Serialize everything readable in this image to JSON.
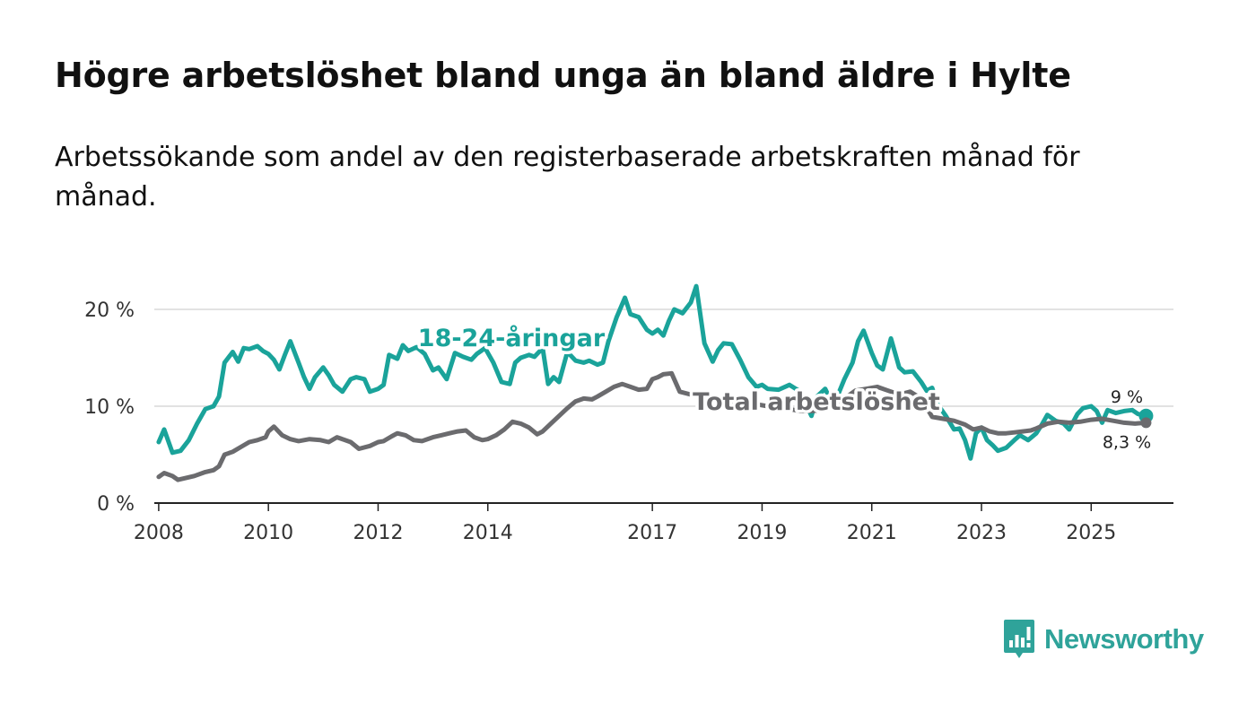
{
  "title": "Högre arbetslöshet bland unga än bland äldre i Hylte",
  "subtitle": "Arbetssökande som andel av den registerbaserade arbetskraften månad för månad.",
  "brand": {
    "name": "Newsworthy"
  },
  "chart_data": {
    "type": "line",
    "title": "Högre arbetslöshet bland unga än bland äldre i Hylte",
    "subtitle": "Arbetssökande som andel av den registerbaserade arbetskraften månad för månad.",
    "xlabel": "",
    "ylabel": "",
    "ylim": [
      0,
      22.5
    ],
    "xlim": [
      2007.92,
      2026.5
    ],
    "y_ticks": [
      {
        "value": 0,
        "label": "0 %"
      },
      {
        "value": 10,
        "label": "10 %"
      },
      {
        "value": 20,
        "label": "20 %"
      }
    ],
    "x_ticks": [
      {
        "value": 2008,
        "label": "2008"
      },
      {
        "value": 2010,
        "label": "2010"
      },
      {
        "value": 2012,
        "label": "2012"
      },
      {
        "value": 2014,
        "label": "2014"
      },
      {
        "value": 2017,
        "label": "2017"
      },
      {
        "value": 2019,
        "label": "2019"
      },
      {
        "value": 2021,
        "label": "2021"
      },
      {
        "value": 2023,
        "label": "2023"
      },
      {
        "value": 2025,
        "label": "2025"
      }
    ],
    "grid": true,
    "series": [
      {
        "name": "18-24-åringar",
        "color": "#1aa39a",
        "end_label": "9 %",
        "x": [
          2008.0,
          2008.1,
          2008.25,
          2008.4,
          2008.55,
          2008.7,
          2008.85,
          2009.0,
          2009.1,
          2009.2,
          2009.35,
          2009.45,
          2009.55,
          2009.65,
          2009.8,
          2009.9,
          2010.0,
          2010.1,
          2010.2,
          2010.3,
          2010.4,
          2010.55,
          2010.65,
          2010.75,
          2010.85,
          2011.0,
          2011.1,
          2011.2,
          2011.35,
          2011.5,
          2011.6,
          2011.75,
          2011.85,
          2012.0,
          2012.1,
          2012.2,
          2012.35,
          2012.45,
          2012.55,
          2012.7,
          2012.85,
          2013.0,
          2013.1,
          2013.25,
          2013.4,
          2013.55,
          2013.7,
          2013.8,
          2013.95,
          2014.1,
          2014.25,
          2014.4,
          2014.5,
          2014.6,
          2014.75,
          2014.85,
          2015.0,
          2015.1,
          2015.2,
          2015.3,
          2015.45,
          2015.6,
          2015.75,
          2015.85,
          2016.0,
          2016.1,
          2016.2,
          2016.35,
          2016.5,
          2016.6,
          2016.75,
          2016.9,
          2017.0,
          2017.1,
          2017.2,
          2017.3,
          2017.4,
          2017.55,
          2017.7,
          2017.8,
          2017.95,
          2018.1,
          2018.2,
          2018.3,
          2018.45,
          2018.6,
          2018.75,
          2018.9,
          2019.0,
          2019.1,
          2019.3,
          2019.5,
          2019.7,
          2019.9,
          2020.0,
          2020.15,
          2020.3,
          2020.5,
          2020.65,
          2020.75,
          2020.85,
          2021.0,
          2021.1,
          2021.2,
          2021.35,
          2021.5,
          2021.6,
          2021.75,
          2021.9,
          2022.0,
          2022.1,
          2022.2,
          2022.35,
          2022.5,
          2022.6,
          2022.7,
          2022.8,
          2022.9,
          2023.0,
          2023.1,
          2023.2,
          2023.3,
          2023.45,
          2023.6,
          2023.7,
          2023.85,
          2024.0,
          2024.1,
          2024.2,
          2024.35,
          2024.5,
          2024.6,
          2024.75,
          2024.85,
          2025.0,
          2025.1,
          2025.2,
          2025.3,
          2025.45,
          2025.6,
          2025.75,
          2025.85,
          2026.0
        ],
        "y": [
          6.3,
          7.6,
          5.2,
          5.4,
          6.5,
          8.2,
          9.7,
          10.0,
          11.0,
          14.5,
          15.6,
          14.6,
          16.0,
          15.9,
          16.2,
          15.7,
          15.4,
          14.8,
          13.8,
          15.3,
          16.7,
          14.5,
          13.0,
          11.8,
          13.0,
          14.0,
          13.2,
          12.2,
          11.5,
          12.8,
          13.0,
          12.8,
          11.5,
          11.8,
          12.2,
          15.3,
          14.9,
          16.3,
          15.7,
          16.1,
          15.4,
          13.7,
          14.0,
          12.8,
          15.5,
          15.1,
          14.8,
          15.4,
          16.0,
          14.5,
          12.5,
          12.3,
          14.5,
          15.0,
          15.3,
          15.1,
          16.0,
          12.3,
          13.0,
          12.5,
          15.6,
          14.7,
          14.5,
          14.7,
          14.3,
          14.5,
          16.7,
          19.2,
          21.2,
          19.5,
          19.2,
          17.9,
          17.5,
          17.9,
          17.3,
          18.8,
          20.0,
          19.6,
          20.7,
          22.4,
          16.5,
          14.6,
          15.8,
          16.5,
          16.4,
          14.8,
          13.0,
          12.0,
          12.2,
          11.8,
          11.7,
          12.2,
          11.5,
          9.0,
          11.0,
          11.8,
          10.0,
          12.8,
          14.5,
          16.7,
          17.8,
          15.5,
          14.2,
          13.8,
          17.0,
          14.0,
          13.5,
          13.6,
          12.5,
          11.6,
          11.9,
          10.2,
          9.0,
          7.6,
          7.7,
          6.5,
          4.6,
          7.2,
          7.8,
          6.5,
          6.0,
          5.4,
          5.7,
          6.5,
          7.0,
          6.5,
          7.2,
          8.1,
          9.1,
          8.5,
          8.2,
          7.6,
          9.2,
          9.8,
          10.0,
          9.5,
          8.3,
          9.6,
          9.3,
          9.5,
          9.6,
          9.2,
          9.0
        ]
      },
      {
        "name": "Total arbetslöshet",
        "color": "#6b6b6e",
        "end_label": "8,3 %",
        "x": [
          2008.0,
          2008.1,
          2008.25,
          2008.35,
          2008.5,
          2008.65,
          2008.85,
          2009.0,
          2009.1,
          2009.2,
          2009.35,
          2009.5,
          2009.65,
          2009.8,
          2009.95,
          2010.0,
          2010.1,
          2010.25,
          2010.4,
          2010.55,
          2010.75,
          2010.95,
          2011.1,
          2011.25,
          2011.35,
          2011.5,
          2011.65,
          2011.85,
          2012.0,
          2012.1,
          2012.25,
          2012.35,
          2012.5,
          2012.65,
          2012.8,
          2013.0,
          2013.15,
          2013.3,
          2013.45,
          2013.6,
          2013.75,
          2013.9,
          2014.0,
          2014.15,
          2014.3,
          2014.45,
          2014.6,
          2014.75,
          2014.9,
          2015.0,
          2015.15,
          2015.3,
          2015.45,
          2015.6,
          2015.75,
          2015.9,
          2016.0,
          2016.15,
          2016.3,
          2016.45,
          2016.6,
          2016.75,
          2016.9,
          2017.0,
          2017.1,
          2017.2,
          2017.35,
          2017.5,
          2017.7,
          2017.9,
          2018.1,
          2018.3,
          2018.5,
          2018.7,
          2018.9,
          2019.1,
          2019.3,
          2019.5,
          2019.7,
          2019.9,
          2020.1,
          2020.3,
          2020.5,
          2020.7,
          2020.9,
          2021.1,
          2021.3,
          2021.5,
          2021.7,
          2021.9,
          2022.1,
          2022.3,
          2022.5,
          2022.7,
          2022.85,
          2023.0,
          2023.15,
          2023.3,
          2023.45,
          2023.6,
          2023.75,
          2023.9,
          2024.0,
          2024.2,
          2024.4,
          2024.6,
          2024.8,
          2025.0,
          2025.2,
          2025.4,
          2025.6,
          2025.8,
          2026.0
        ],
        "y": [
          2.7,
          3.1,
          2.8,
          2.4,
          2.6,
          2.8,
          3.2,
          3.4,
          3.8,
          5.0,
          5.3,
          5.8,
          6.3,
          6.5,
          6.8,
          7.4,
          7.9,
          7.0,
          6.6,
          6.4,
          6.6,
          6.5,
          6.3,
          6.8,
          6.6,
          6.3,
          5.6,
          5.9,
          6.3,
          6.4,
          6.9,
          7.2,
          7.0,
          6.5,
          6.4,
          6.8,
          7.0,
          7.2,
          7.4,
          7.5,
          6.8,
          6.5,
          6.6,
          7.0,
          7.6,
          8.4,
          8.2,
          7.8,
          7.1,
          7.4,
          8.2,
          9.0,
          9.8,
          10.5,
          10.8,
          10.7,
          11.0,
          11.5,
          12.0,
          12.3,
          12.0,
          11.7,
          11.8,
          12.8,
          13.0,
          13.3,
          13.4,
          11.5,
          11.2,
          10.8,
          10.6,
          10.5,
          10.5,
          10.3,
          10.2,
          10.0,
          9.8,
          9.7,
          9.5,
          9.5,
          9.6,
          9.9,
          10.8,
          11.6,
          11.8,
          12.0,
          11.6,
          11.2,
          11.5,
          10.8,
          8.9,
          8.7,
          8.5,
          8.1,
          7.6,
          7.8,
          7.4,
          7.2,
          7.2,
          7.3,
          7.4,
          7.5,
          7.7,
          8.2,
          8.4,
          8.3,
          8.4,
          8.6,
          8.7,
          8.5,
          8.3,
          8.2,
          8.3
        ]
      }
    ]
  }
}
